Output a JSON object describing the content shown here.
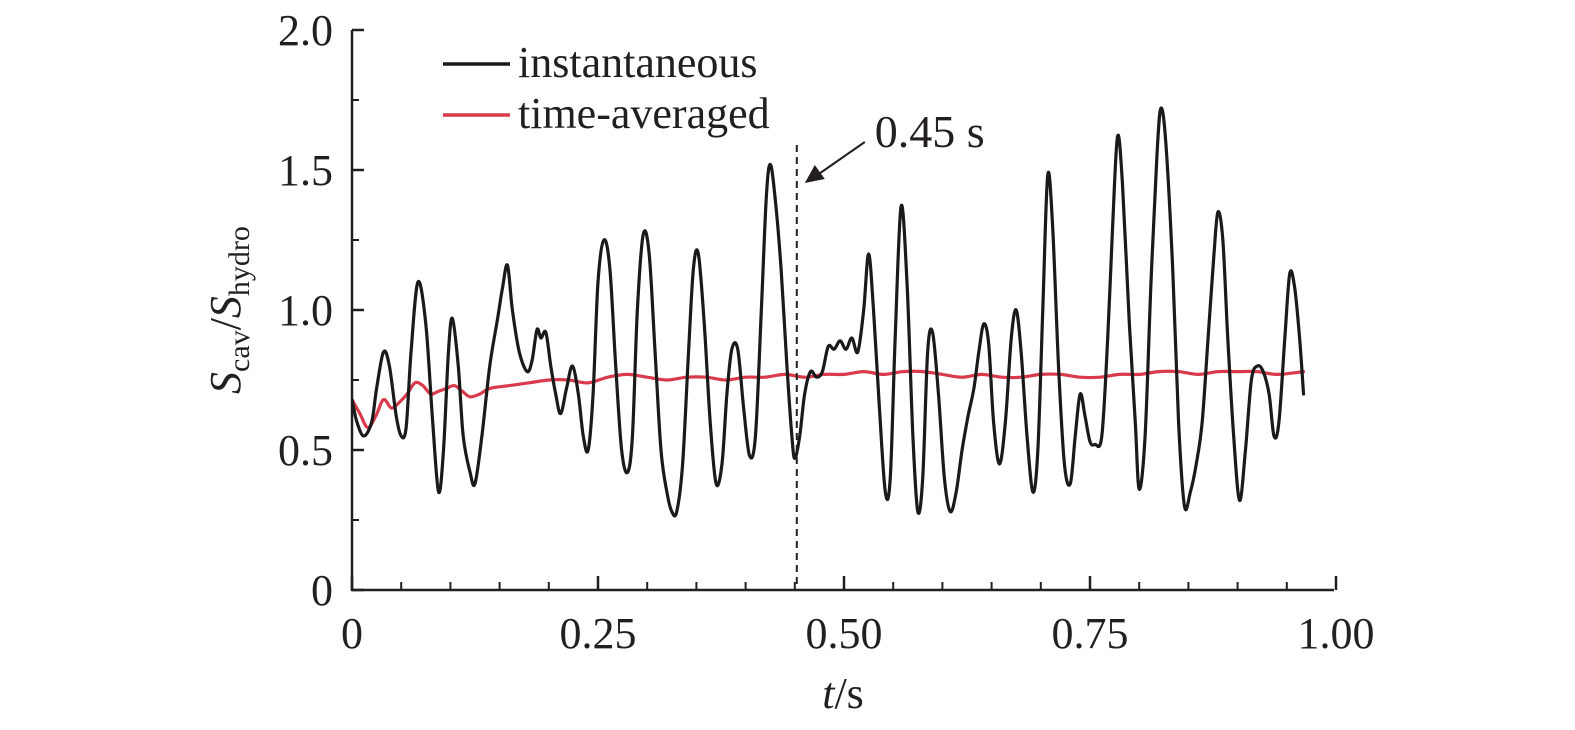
{
  "chart_data": {
    "type": "line",
    "title": "",
    "xlabel": {
      "var": "t",
      "unit": "/s"
    },
    "ylabel": {
      "num": "S",
      "num_sub": "cav",
      "sep": "/",
      "den": "S",
      "den_sub": "hydro"
    },
    "xlim": [
      0,
      1.0
    ],
    "ylim": [
      0,
      2.0
    ],
    "xticks": [
      "0",
      "0.25",
      "0.50",
      "0.75",
      "1.00"
    ],
    "yticks": [
      "0",
      "0.5",
      "1.0",
      "1.5",
      "2.0"
    ],
    "grid": false,
    "legend": {
      "placement": "top-left"
    },
    "series": [
      {
        "name": "instantaneous",
        "color": "#1a1a1a",
        "points": [
          [
            0.0,
            0.68
          ],
          [
            0.005,
            0.6
          ],
          [
            0.012,
            0.55
          ],
          [
            0.02,
            0.6
          ],
          [
            0.025,
            0.72
          ],
          [
            0.032,
            0.85
          ],
          [
            0.038,
            0.8
          ],
          [
            0.045,
            0.62
          ],
          [
            0.05,
            0.55
          ],
          [
            0.055,
            0.58
          ],
          [
            0.06,
            0.85
          ],
          [
            0.067,
            1.1
          ],
          [
            0.075,
            0.95
          ],
          [
            0.082,
            0.6
          ],
          [
            0.088,
            0.35
          ],
          [
            0.093,
            0.5
          ],
          [
            0.098,
            0.85
          ],
          [
            0.102,
            0.97
          ],
          [
            0.108,
            0.8
          ],
          [
            0.113,
            0.55
          ],
          [
            0.12,
            0.42
          ],
          [
            0.125,
            0.38
          ],
          [
            0.132,
            0.55
          ],
          [
            0.14,
            0.8
          ],
          [
            0.148,
            0.97
          ],
          [
            0.153,
            1.08
          ],
          [
            0.158,
            1.16
          ],
          [
            0.163,
            1.0
          ],
          [
            0.17,
            0.85
          ],
          [
            0.178,
            0.78
          ],
          [
            0.183,
            0.82
          ],
          [
            0.188,
            0.93
          ],
          [
            0.192,
            0.9
          ],
          [
            0.197,
            0.92
          ],
          [
            0.202,
            0.8
          ],
          [
            0.207,
            0.7
          ],
          [
            0.212,
            0.63
          ],
          [
            0.218,
            0.72
          ],
          [
            0.224,
            0.8
          ],
          [
            0.23,
            0.7
          ],
          [
            0.235,
            0.55
          ],
          [
            0.24,
            0.5
          ],
          [
            0.245,
            0.7
          ],
          [
            0.25,
            1.1
          ],
          [
            0.256,
            1.25
          ],
          [
            0.262,
            1.15
          ],
          [
            0.268,
            0.8
          ],
          [
            0.274,
            0.5
          ],
          [
            0.28,
            0.42
          ],
          [
            0.285,
            0.55
          ],
          [
            0.29,
            1.0
          ],
          [
            0.296,
            1.27
          ],
          [
            0.302,
            1.2
          ],
          [
            0.308,
            0.85
          ],
          [
            0.314,
            0.5
          ],
          [
            0.32,
            0.35
          ],
          [
            0.325,
            0.28
          ],
          [
            0.33,
            0.28
          ],
          [
            0.336,
            0.45
          ],
          [
            0.342,
            0.85
          ],
          [
            0.347,
            1.15
          ],
          [
            0.352,
            1.2
          ],
          [
            0.358,
            0.95
          ],
          [
            0.364,
            0.6
          ],
          [
            0.37,
            0.38
          ],
          [
            0.376,
            0.45
          ],
          [
            0.381,
            0.7
          ],
          [
            0.386,
            0.86
          ],
          [
            0.392,
            0.86
          ],
          [
            0.398,
            0.65
          ],
          [
            0.404,
            0.48
          ],
          [
            0.41,
            0.55
          ],
          [
            0.416,
            1.0
          ],
          [
            0.421,
            1.4
          ],
          [
            0.425,
            1.52
          ],
          [
            0.43,
            1.4
          ],
          [
            0.436,
            1.15
          ],
          [
            0.442,
            0.8
          ],
          [
            0.447,
            0.55
          ],
          [
            0.45,
            0.47
          ],
          [
            0.455,
            0.55
          ],
          [
            0.46,
            0.7
          ],
          [
            0.466,
            0.78
          ],
          [
            0.472,
            0.76
          ],
          [
            0.478,
            0.78
          ],
          [
            0.484,
            0.87
          ],
          [
            0.49,
            0.86
          ],
          [
            0.496,
            0.89
          ],
          [
            0.502,
            0.86
          ],
          [
            0.508,
            0.9
          ],
          [
            0.514,
            0.85
          ],
          [
            0.52,
            1.0
          ],
          [
            0.525,
            1.2
          ],
          [
            0.53,
            1.0
          ],
          [
            0.536,
            0.65
          ],
          [
            0.542,
            0.35
          ],
          [
            0.547,
            0.4
          ],
          [
            0.552,
            0.9
          ],
          [
            0.558,
            1.37
          ],
          [
            0.564,
            1.1
          ],
          [
            0.57,
            0.55
          ],
          [
            0.575,
            0.28
          ],
          [
            0.58,
            0.4
          ],
          [
            0.585,
            0.85
          ],
          [
            0.59,
            0.92
          ],
          [
            0.596,
            0.7
          ],
          [
            0.602,
            0.4
          ],
          [
            0.608,
            0.28
          ],
          [
            0.614,
            0.35
          ],
          [
            0.62,
            0.5
          ],
          [
            0.626,
            0.62
          ],
          [
            0.632,
            0.72
          ],
          [
            0.637,
            0.85
          ],
          [
            0.642,
            0.95
          ],
          [
            0.647,
            0.88
          ],
          [
            0.652,
            0.6
          ],
          [
            0.658,
            0.45
          ],
          [
            0.664,
            0.6
          ],
          [
            0.67,
            0.9
          ],
          [
            0.675,
            1.0
          ],
          [
            0.68,
            0.85
          ],
          [
            0.686,
            0.55
          ],
          [
            0.692,
            0.35
          ],
          [
            0.697,
            0.5
          ],
          [
            0.702,
            1.0
          ],
          [
            0.707,
            1.48
          ],
          [
            0.712,
            1.3
          ],
          [
            0.718,
            0.8
          ],
          [
            0.724,
            0.45
          ],
          [
            0.73,
            0.38
          ],
          [
            0.735,
            0.55
          ],
          [
            0.74,
            0.7
          ],
          [
            0.745,
            0.62
          ],
          [
            0.75,
            0.53
          ],
          [
            0.755,
            0.52
          ],
          [
            0.762,
            0.55
          ],
          [
            0.768,
            0.9
          ],
          [
            0.773,
            1.3
          ],
          [
            0.778,
            1.62
          ],
          [
            0.783,
            1.45
          ],
          [
            0.79,
            0.95
          ],
          [
            0.796,
            0.6
          ],
          [
            0.8,
            0.36
          ],
          [
            0.806,
            0.55
          ],
          [
            0.812,
            1.1
          ],
          [
            0.818,
            1.55
          ],
          [
            0.822,
            1.72
          ],
          [
            0.827,
            1.6
          ],
          [
            0.834,
            1.15
          ],
          [
            0.84,
            0.6
          ],
          [
            0.846,
            0.3
          ],
          [
            0.852,
            0.35
          ],
          [
            0.858,
            0.45
          ],
          [
            0.864,
            0.6
          ],
          [
            0.87,
            0.9
          ],
          [
            0.876,
            1.2
          ],
          [
            0.88,
            1.35
          ],
          [
            0.885,
            1.25
          ],
          [
            0.89,
            0.9
          ],
          [
            0.896,
            0.55
          ],
          [
            0.902,
            0.32
          ],
          [
            0.908,
            0.5
          ],
          [
            0.914,
            0.75
          ],
          [
            0.92,
            0.8
          ],
          [
            0.926,
            0.78
          ],
          [
            0.932,
            0.7
          ],
          [
            0.937,
            0.55
          ],
          [
            0.942,
            0.6
          ],
          [
            0.948,
            0.9
          ],
          [
            0.953,
            1.13
          ],
          [
            0.958,
            1.08
          ],
          [
            0.963,
            0.9
          ],
          [
            0.967,
            0.7
          ]
        ]
      },
      {
        "name": "time-averaged",
        "color": "#d93a4c",
        "points": [
          [
            0.0,
            0.68
          ],
          [
            0.008,
            0.63
          ],
          [
            0.016,
            0.58
          ],
          [
            0.024,
            0.62
          ],
          [
            0.032,
            0.68
          ],
          [
            0.04,
            0.65
          ],
          [
            0.048,
            0.67
          ],
          [
            0.056,
            0.7
          ],
          [
            0.064,
            0.74
          ],
          [
            0.072,
            0.73
          ],
          [
            0.08,
            0.7
          ],
          [
            0.088,
            0.71
          ],
          [
            0.096,
            0.72
          ],
          [
            0.104,
            0.73
          ],
          [
            0.112,
            0.71
          ],
          [
            0.12,
            0.69
          ],
          [
            0.13,
            0.7
          ],
          [
            0.14,
            0.72
          ],
          [
            0.16,
            0.73
          ],
          [
            0.18,
            0.74
          ],
          [
            0.2,
            0.75
          ],
          [
            0.22,
            0.75
          ],
          [
            0.24,
            0.74
          ],
          [
            0.26,
            0.76
          ],
          [
            0.28,
            0.77
          ],
          [
            0.3,
            0.76
          ],
          [
            0.32,
            0.75
          ],
          [
            0.34,
            0.76
          ],
          [
            0.36,
            0.76
          ],
          [
            0.38,
            0.75
          ],
          [
            0.4,
            0.76
          ],
          [
            0.42,
            0.76
          ],
          [
            0.44,
            0.77
          ],
          [
            0.46,
            0.76
          ],
          [
            0.48,
            0.77
          ],
          [
            0.5,
            0.77
          ],
          [
            0.52,
            0.78
          ],
          [
            0.54,
            0.77
          ],
          [
            0.56,
            0.78
          ],
          [
            0.58,
            0.78
          ],
          [
            0.6,
            0.77
          ],
          [
            0.62,
            0.76
          ],
          [
            0.64,
            0.77
          ],
          [
            0.66,
            0.76
          ],
          [
            0.68,
            0.76
          ],
          [
            0.7,
            0.77
          ],
          [
            0.72,
            0.77
          ],
          [
            0.74,
            0.76
          ],
          [
            0.76,
            0.76
          ],
          [
            0.78,
            0.77
          ],
          [
            0.8,
            0.77
          ],
          [
            0.82,
            0.78
          ],
          [
            0.84,
            0.78
          ],
          [
            0.86,
            0.77
          ],
          [
            0.88,
            0.78
          ],
          [
            0.9,
            0.78
          ],
          [
            0.92,
            0.78
          ],
          [
            0.94,
            0.77
          ],
          [
            0.967,
            0.78
          ]
        ]
      }
    ],
    "annotations": [
      {
        "text": "0.45 s",
        "x": 0.45,
        "style": "dashed-vertical-line-with-arrow"
      }
    ]
  }
}
